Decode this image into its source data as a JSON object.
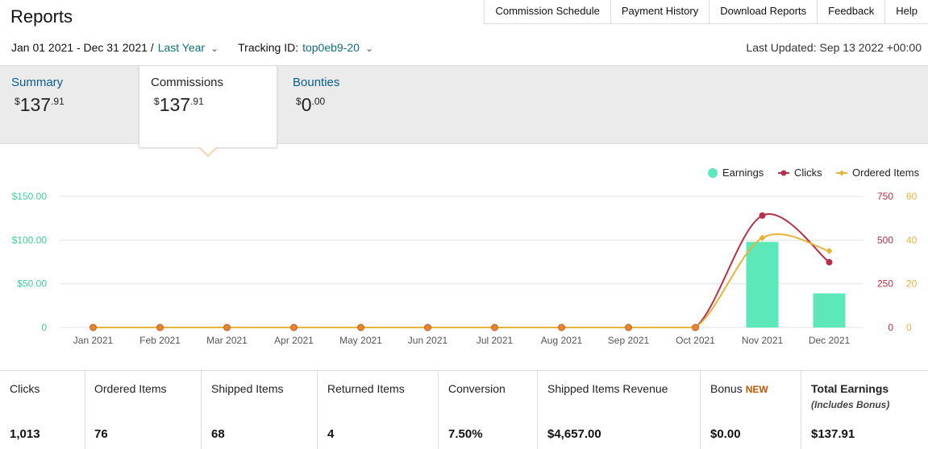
{
  "page": {
    "title": "Reports"
  },
  "top_links": [
    "Commission Schedule",
    "Payment History",
    "Download Reports",
    "Feedback",
    "Help"
  ],
  "filters": {
    "date_range": "Jan 01 2021 - Dec 31 2021 /",
    "period": "Last Year",
    "tracking_label": "Tracking ID:",
    "tracking_id": "top0eb9-20"
  },
  "last_updated": "Last Updated: Sep 13 2022 +00:00",
  "tabs": [
    {
      "label": "Summary",
      "amount_dollar": "$",
      "amount_int": "137",
      "amount_cents": ".91"
    },
    {
      "label": "Commissions",
      "amount_dollar": "$",
      "amount_int": "137",
      "amount_cents": ".91"
    },
    {
      "label": "Bounties",
      "amount_dollar": "$",
      "amount_int": "0",
      "amount_cents": ".00"
    }
  ],
  "colors": {
    "earnings": "#5ce8b8",
    "clicks": "#b5304a",
    "ordered": "#e8b33a",
    "link": "#0a5d8f"
  },
  "chart_data": {
    "type": "bar",
    "categories": [
      "Jan 2021",
      "Feb 2021",
      "Mar 2021",
      "Apr 2021",
      "May 2021",
      "Jun 2021",
      "Jul 2021",
      "Aug 2021",
      "Sep 2021",
      "Oct 2021",
      "Nov 2021",
      "Dec 2021"
    ],
    "legend": [
      "Earnings",
      "Clicks",
      "Ordered Items"
    ],
    "legend_position": "top-right",
    "series": [
      {
        "name": "Earnings",
        "type": "bar",
        "axis": "left",
        "values": [
          0,
          0,
          0,
          0,
          0,
          0,
          0,
          0,
          0,
          0,
          98,
          39
        ]
      },
      {
        "name": "Clicks",
        "type": "line",
        "axis": "right1",
        "values": [
          0,
          0,
          0,
          0,
          0,
          0,
          0,
          0,
          0,
          0,
          640,
          373
        ]
      },
      {
        "name": "Ordered Items",
        "type": "line",
        "axis": "right2",
        "values": [
          0,
          0,
          0,
          0,
          0,
          0,
          0,
          0,
          0,
          0,
          41,
          35
        ]
      }
    ],
    "y_left": {
      "ticks": [
        "$150.00",
        "$100.00",
        "$50.00",
        "0"
      ],
      "range": [
        0,
        150
      ]
    },
    "y_right1": {
      "ticks": [
        "750",
        "500",
        "250",
        "0"
      ],
      "range": [
        0,
        750
      ]
    },
    "y_right2": {
      "ticks": [
        "60",
        "40",
        "20",
        "0"
      ],
      "range": [
        0,
        60
      ]
    },
    "grid": true
  },
  "stats": [
    {
      "label": "Clicks",
      "value": "1,013"
    },
    {
      "label": "Ordered Items",
      "value": "76"
    },
    {
      "label": "Shipped Items",
      "value": "68"
    },
    {
      "label": "Returned Items",
      "value": "4"
    },
    {
      "label": "Conversion",
      "value": "7.50%"
    },
    {
      "label": "Shipped Items Revenue",
      "value": "$4,657.00"
    },
    {
      "label": "Bonus",
      "badge": "NEW",
      "value": "$0.00"
    },
    {
      "label": "Total Earnings",
      "sub": "(Includes Bonus)",
      "value": "$137.91"
    }
  ]
}
